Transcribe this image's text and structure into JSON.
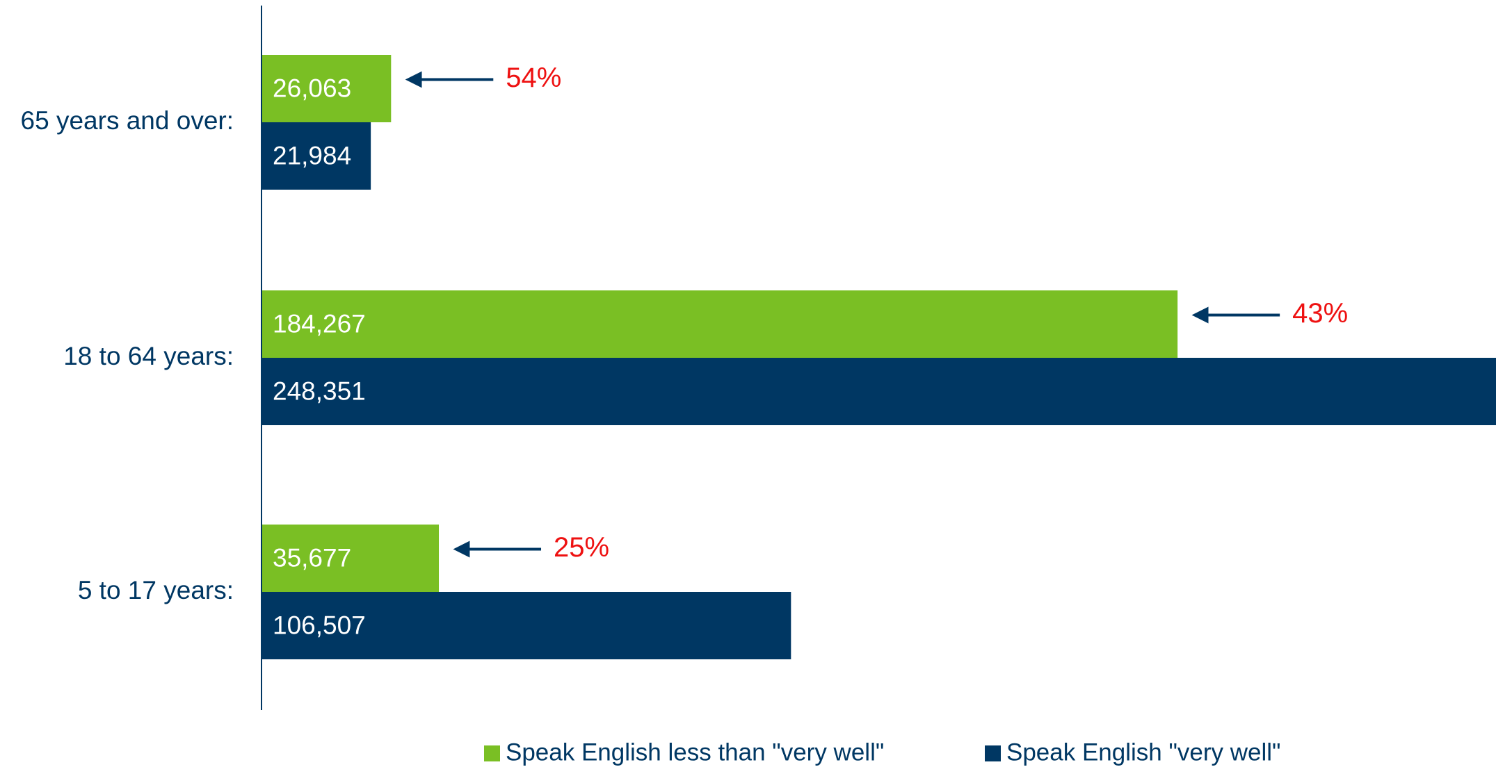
{
  "chart_data": {
    "type": "hbar",
    "categories": [
      "65 years and over:",
      "18 to 64 years:",
      "5 to 17 years:"
    ],
    "series": [
      {
        "name": "Speak English less than \"very well\"",
        "color": "#7abf24",
        "values": [
          26063,
          184267,
          35677
        ],
        "value_labels": [
          "26,063",
          "184,267",
          "35,677"
        ]
      },
      {
        "name": "Speak English \"very well\"",
        "color": "#003763",
        "values": [
          21984,
          248351,
          106507
        ],
        "value_labels": [
          "21,984",
          "248,351",
          "106,507"
        ]
      }
    ],
    "annotations": [
      "54%",
      "43%",
      "25%"
    ],
    "annotation_color": "#ee1111",
    "xlim": [
      0,
      250000
    ],
    "legend": "bottom"
  }
}
